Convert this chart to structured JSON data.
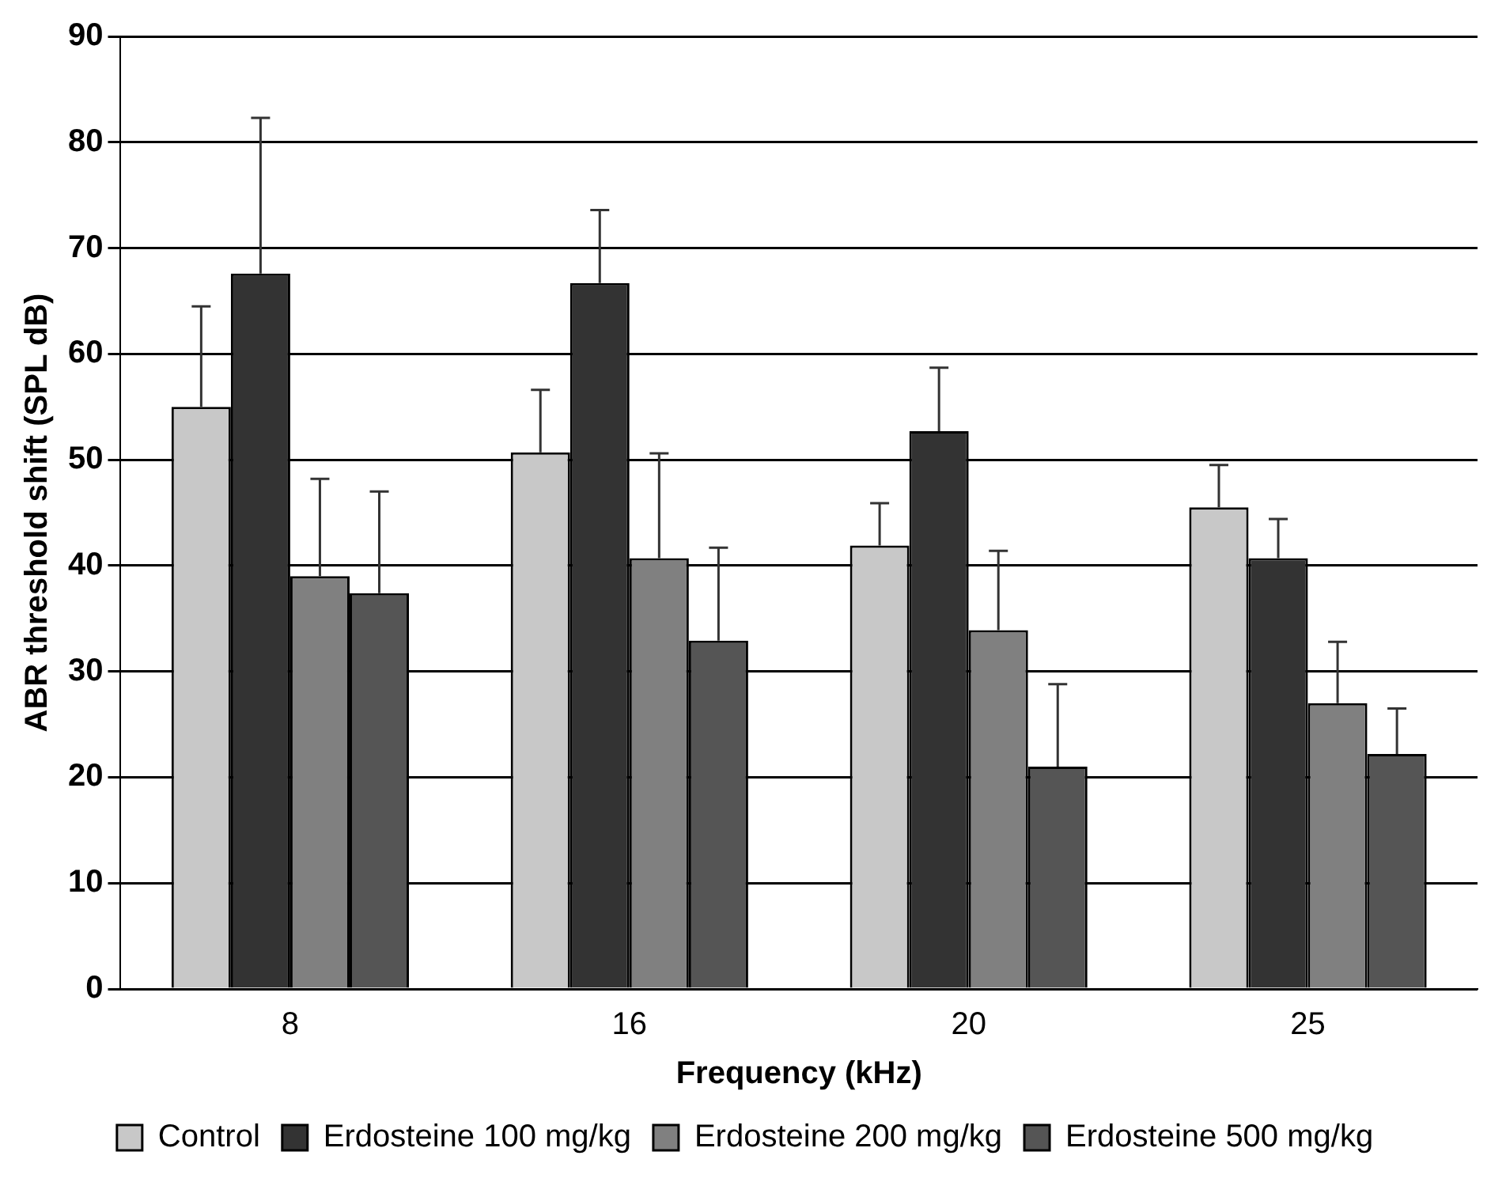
{
  "chart_data": {
    "type": "bar",
    "xlabel": "Frequency (kHz)",
    "ylabel": "ABR threshold shift (SPL dB)",
    "categories": [
      "8",
      "16",
      "20",
      "25"
    ],
    "series": [
      {
        "name": "Control",
        "color": "#c8c8c8",
        "values": [
          55,
          50.7,
          41.9,
          45.5
        ],
        "errors": [
          [
            55,
            64.5
          ],
          [
            50.7,
            56.6
          ],
          [
            41.9,
            45.9
          ],
          [
            45.5,
            49.5
          ]
        ]
      },
      {
        "name": "Erdosteine 100 mg/kg",
        "color": "#333333",
        "values": [
          67.6,
          66.7,
          52.7,
          40.7
        ],
        "errors": [
          [
            67.6,
            82.3
          ],
          [
            66.7,
            73.6
          ],
          [
            52.7,
            58.7
          ],
          [
            40.7,
            44.4
          ]
        ]
      },
      {
        "name": "Erdosteine 200 mg/kg",
        "color": "#808080",
        "values": [
          39,
          40.7,
          33.9,
          27
        ],
        "errors": [
          [
            39,
            48.2
          ],
          [
            40.7,
            50.6
          ],
          [
            33.9,
            41.4
          ],
          [
            27,
            32.8
          ]
        ]
      },
      {
        "name": "Erdosteine 500 mg/kg",
        "color": "#555555",
        "values": [
          37.4,
          32.9,
          21,
          22.2
        ],
        "errors": [
          [
            37.4,
            47
          ],
          [
            32.9,
            41.7
          ],
          [
            21,
            28.8
          ],
          [
            22.2,
            26.5
          ]
        ]
      }
    ],
    "ylim": [
      0,
      90
    ],
    "yticks": [
      0,
      10,
      20,
      30,
      40,
      50,
      60,
      70,
      80,
      90
    ],
    "grid": "y",
    "legend": "bottom"
  }
}
